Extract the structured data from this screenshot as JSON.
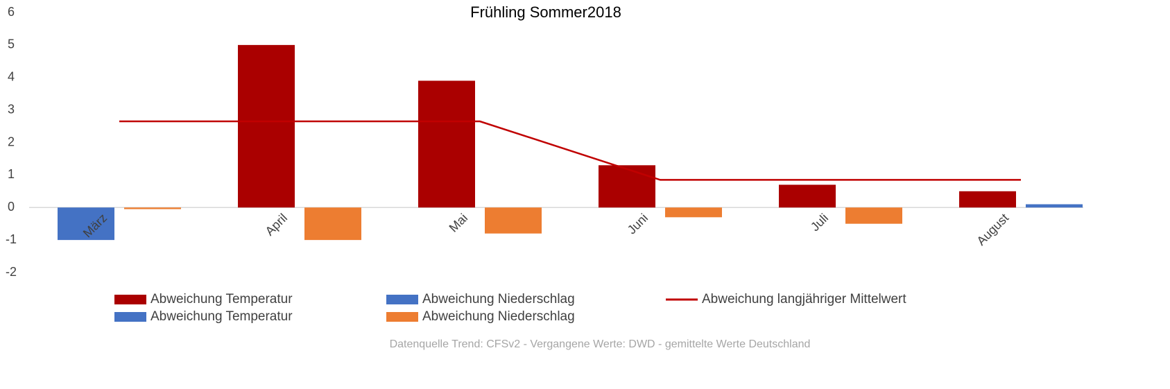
{
  "chart_data": {
    "type": "bar",
    "title": "Frühling Sommer2018",
    "categories": [
      "März",
      "April",
      "Mai",
      "Juni",
      "Juli",
      "August"
    ],
    "series": [
      {
        "name": "Abweichung Temperatur",
        "color": "#aa0000",
        "values": [
          null,
          5,
          3.9,
          1.3,
          0.7,
          0.5
        ]
      },
      {
        "name": "Abweichung Niederschlag",
        "color": "#4472c4",
        "values": [
          null,
          null,
          null,
          null,
          null,
          0.1
        ]
      },
      {
        "name": "Abweichung langjähriger Mittelwert",
        "type": "line",
        "color": "#c00000",
        "values": [
          2.65,
          2.65,
          2.65,
          0.85,
          0.85,
          0.85
        ]
      },
      {
        "name": "Abweichung Temperatur",
        "color": "#4472c4",
        "values": [
          -1,
          null,
          null,
          null,
          null,
          null
        ]
      },
      {
        "name": "Abweichung Niederschlag",
        "color": "#ed7d31",
        "values": [
          -0.05,
          -1,
          -0.8,
          -0.3,
          -0.5,
          null
        ]
      }
    ],
    "ylim": [
      -2,
      6
    ],
    "yticks": [
      -2,
      -1,
      0,
      1,
      2,
      3,
      4,
      5,
      6
    ],
    "grid": false,
    "source": "Datenquelle Trend: CFSv2 - Vergangene Werte: DWD - gemittelte Werte Deutschland"
  }
}
